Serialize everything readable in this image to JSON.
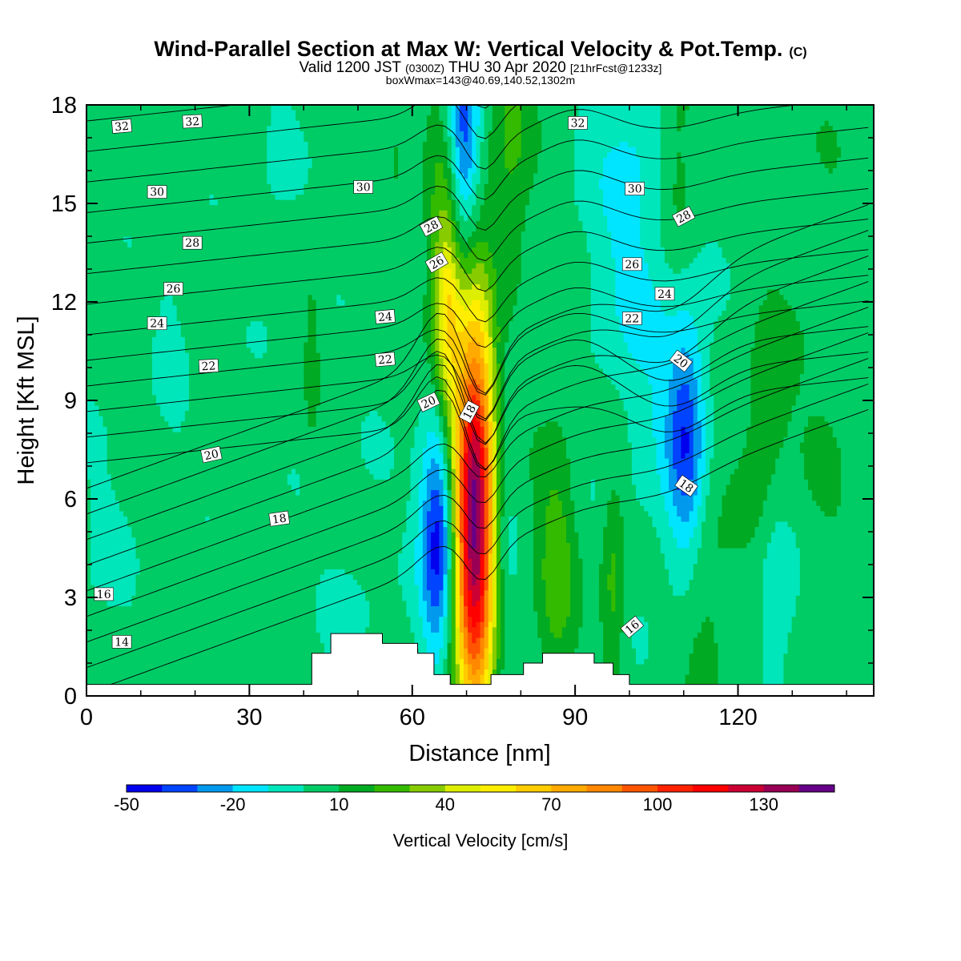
{
  "chart_data": {
    "type": "heatmap",
    "title": "Wind-Parallel Section at Max W: Vertical Velocity & Pot.Temp.",
    "title_suffix": "(C)",
    "subtitle": {
      "part1": "Valid 1200 JST",
      "part2": "(0300Z)",
      "part3": "THU 30 Apr 2020",
      "part4": "[21hrFcst@1233z]"
    },
    "subtitle2": "boxWmax=143@40.69,140.52,1302m",
    "xlabel": "Distance [nm]",
    "ylabel": "Height [Kft MSL]",
    "xlim": [
      0,
      145
    ],
    "ylim": [
      0,
      18
    ],
    "x_ticks": [
      0,
      30,
      60,
      90,
      120
    ],
    "y_ticks": [
      0,
      3,
      6,
      9,
      12,
      15,
      18
    ],
    "colorbar": {
      "label": "Vertical Velocity [cm/s]",
      "levels": [
        -50,
        -40,
        -30,
        -20,
        -10,
        0,
        10,
        20,
        30,
        40,
        50,
        60,
        70,
        80,
        90,
        100,
        110,
        120,
        130,
        140,
        150
      ],
      "tick_labels": [
        -50,
        -20,
        10,
        40,
        70,
        100,
        130
      ],
      "colors": [
        "#0000ee",
        "#0044ff",
        "#0099ee",
        "#00e5ff",
        "#00e6bb",
        "#00cc66",
        "#00aa22",
        "#33bb00",
        "#88cc00",
        "#ddee00",
        "#ffee00",
        "#ffcc00",
        "#ffaa00",
        "#ff8800",
        "#ff5500",
        "#ff2200",
        "#ff0000",
        "#cc0033",
        "#990055",
        "#660088"
      ]
    },
    "terrain_kft": [
      [
        0,
        0.35
      ],
      [
        41.5,
        0.35
      ],
      [
        41.5,
        1.3
      ],
      [
        45,
        1.3
      ],
      [
        45,
        1.9
      ],
      [
        54.5,
        1.9
      ],
      [
        54.5,
        1.6
      ],
      [
        61,
        1.6
      ],
      [
        61,
        1.3
      ],
      [
        64,
        1.3
      ],
      [
        64,
        0.65
      ],
      [
        67,
        0.65
      ],
      [
        67,
        0.35
      ],
      [
        74.5,
        0.35
      ],
      [
        74.5,
        0.65
      ],
      [
        80.5,
        0.65
      ],
      [
        80.5,
        1.0
      ],
      [
        84,
        1.0
      ],
      [
        84,
        1.3
      ],
      [
        93.5,
        1.3
      ],
      [
        93.5,
        1.0
      ],
      [
        97,
        1.0
      ],
      [
        97,
        0.65
      ],
      [
        100,
        0.65
      ],
      [
        100,
        0.35
      ],
      [
        145,
        0.35
      ]
    ],
    "w_features": [
      {
        "x": 71.5,
        "z": 5.5,
        "sx": 2.8,
        "sz": 4.3,
        "amp": 143
      },
      {
        "x": 65,
        "z": 5.0,
        "sx": 2.4,
        "sz": 2.6,
        "amp": -55
      },
      {
        "x": 69.5,
        "z": 16.8,
        "sx": 2.0,
        "sz": 2.4,
        "amp": -42
      },
      {
        "x": 76,
        "z": 5.5,
        "sx": 2.0,
        "sz": 4.5,
        "amp": -18
      },
      {
        "x": 66.5,
        "z": 11.5,
        "sx": 1.7,
        "sz": 2.3,
        "amp": 38
      },
      {
        "x": 65.5,
        "z": 13.5,
        "sx": 2.4,
        "sz": 3.2,
        "amp": 18
      },
      {
        "x": 78,
        "z": 16.5,
        "sx": 2.8,
        "sz": 3.2,
        "amp": 18
      },
      {
        "x": 86.5,
        "z": 4.0,
        "sx": 2.6,
        "sz": 2.8,
        "amp": 22
      },
      {
        "x": 97,
        "z": 3.5,
        "sx": 1.6,
        "sz": 2.5,
        "amp": 20
      },
      {
        "x": 110.5,
        "z": 7.8,
        "sx": 2.3,
        "sz": 2.5,
        "amp": -32
      },
      {
        "x": 109,
        "z": 8.5,
        "sx": 4.5,
        "sz": 4.0,
        "amp": -12
      },
      {
        "x": 127,
        "z": 3.4,
        "sx": 2.5,
        "sz": 2.5,
        "amp": -16
      },
      {
        "x": 125.5,
        "z": 7.8,
        "sx": 3.5,
        "sz": 2.8,
        "amp": 15
      },
      {
        "x": 114,
        "z": 3.3,
        "sx": 3.5,
        "sz": 2.7,
        "amp": 12
      },
      {
        "x": 100,
        "z": 15.0,
        "sx": 5.5,
        "sz": 5.0,
        "amp": -16
      },
      {
        "x": 109,
        "z": 16.5,
        "sx": 2.6,
        "sz": 3.2,
        "amp": 15
      },
      {
        "x": 57,
        "z": 17.0,
        "sx": 2.2,
        "sz": 1.8,
        "amp": 9
      },
      {
        "x": 41.5,
        "z": 10.5,
        "sx": 0.8,
        "sz": 1.8,
        "amp": 12
      },
      {
        "x": 16,
        "z": 12.0,
        "sx": 2.5,
        "sz": 3.0,
        "amp": -6
      },
      {
        "x": 35,
        "z": 16.0,
        "sx": 3.0,
        "sz": 3.0,
        "amp": -5
      },
      {
        "x": 50,
        "z": 3.5,
        "sx": 5.0,
        "sz": 3.0,
        "amp": -5
      },
      {
        "x": 3,
        "z": 4.5,
        "sx": 4.0,
        "sz": 3.0,
        "amp": -5
      },
      {
        "x": 135,
        "z": 17.0,
        "sx": 4.0,
        "sz": 2.5,
        "amp": 3
      },
      {
        "x": 136,
        "z": 7.0,
        "sx": 3.5,
        "sz": 4.0,
        "amp": 5
      }
    ],
    "theta_contours": {
      "levels": [
        12,
        13,
        14,
        15,
        16,
        17,
        18,
        19,
        20,
        21,
        22,
        23,
        24,
        25,
        26,
        27,
        28,
        29,
        30,
        31,
        32,
        33
      ]
    },
    "contour_labels": [
      {
        "text": "32",
        "x": 6.5,
        "z": 17.35,
        "rot": -5
      },
      {
        "text": "32",
        "x": 19.5,
        "z": 17.5,
        "rot": -3
      },
      {
        "text": "32",
        "x": 90.5,
        "z": 17.45,
        "rot": 0
      },
      {
        "text": "30",
        "x": 13,
        "z": 15.35,
        "rot": 0
      },
      {
        "text": "30",
        "x": 51,
        "z": 15.5,
        "rot": 0
      },
      {
        "text": "30",
        "x": 101,
        "z": 15.45,
        "rot": 0
      },
      {
        "text": "28",
        "x": 19.5,
        "z": 13.8,
        "rot": 0
      },
      {
        "text": "28",
        "x": 63.5,
        "z": 14.3,
        "rot": -28
      },
      {
        "text": "28",
        "x": 110,
        "z": 14.6,
        "rot": -28
      },
      {
        "text": "26",
        "x": 16,
        "z": 12.4,
        "rot": 0
      },
      {
        "text": "26",
        "x": 64.5,
        "z": 13.2,
        "rot": -30
      },
      {
        "text": "26",
        "x": 100.5,
        "z": 13.15,
        "rot": 0
      },
      {
        "text": "24",
        "x": 13,
        "z": 11.35,
        "rot": 0
      },
      {
        "text": "24",
        "x": 55,
        "z": 11.55,
        "rot": -5
      },
      {
        "text": "24",
        "x": 106.5,
        "z": 12.25,
        "rot": 0
      },
      {
        "text": "22",
        "x": 22.5,
        "z": 10.05,
        "rot": -3
      },
      {
        "text": "22",
        "x": 55,
        "z": 10.25,
        "rot": -5
      },
      {
        "text": "22",
        "x": 100.5,
        "z": 11.5,
        "rot": 0
      },
      {
        "text": "20",
        "x": 23,
        "z": 7.35,
        "rot": -12
      },
      {
        "text": "20",
        "x": 63,
        "z": 8.95,
        "rot": -25
      },
      {
        "text": "20",
        "x": 109.5,
        "z": 10.2,
        "rot": 38
      },
      {
        "text": "18",
        "x": 35.5,
        "z": 5.4,
        "rot": -8
      },
      {
        "text": "18",
        "x": 70.5,
        "z": 8.65,
        "rot": -62
      },
      {
        "text": "18",
        "x": 110.5,
        "z": 6.4,
        "rot": 35
      },
      {
        "text": "16",
        "x": 3.2,
        "z": 3.1,
        "rot": 0
      },
      {
        "text": "16",
        "x": 100.5,
        "z": 2.1,
        "rot": -40
      },
      {
        "text": "14",
        "x": 6.5,
        "z": 1.65,
        "rot": 0
      }
    ]
  }
}
